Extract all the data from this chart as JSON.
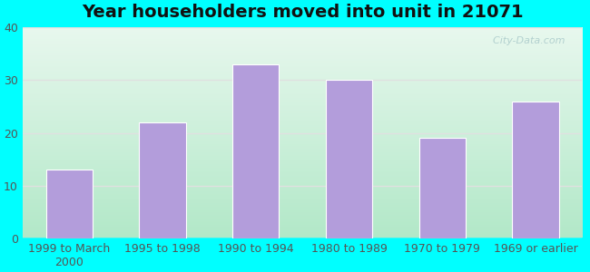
{
  "title": "Year householders moved into unit in 21071",
  "categories": [
    "1999 to March\n2000",
    "1995 to 1998",
    "1990 to 1994",
    "1980 to 1989",
    "1970 to 1979",
    "1969 or earlier"
  ],
  "values": [
    13,
    22,
    33,
    30,
    19,
    26
  ],
  "bar_color": "#b39ddb",
  "bar_edge_color": "#ffffff",
  "ylim": [
    0,
    40
  ],
  "yticks": [
    0,
    10,
    20,
    30,
    40
  ],
  "bg_bottom_color": "#b2e8c8",
  "bg_top_color": "#e8f8ee",
  "outer_background": "#00ffff",
  "title_fontsize": 14,
  "tick_fontsize": 9,
  "watermark": "  City-Data.com",
  "grid_color": "#e0e0e0",
  "bar_width": 0.5
}
